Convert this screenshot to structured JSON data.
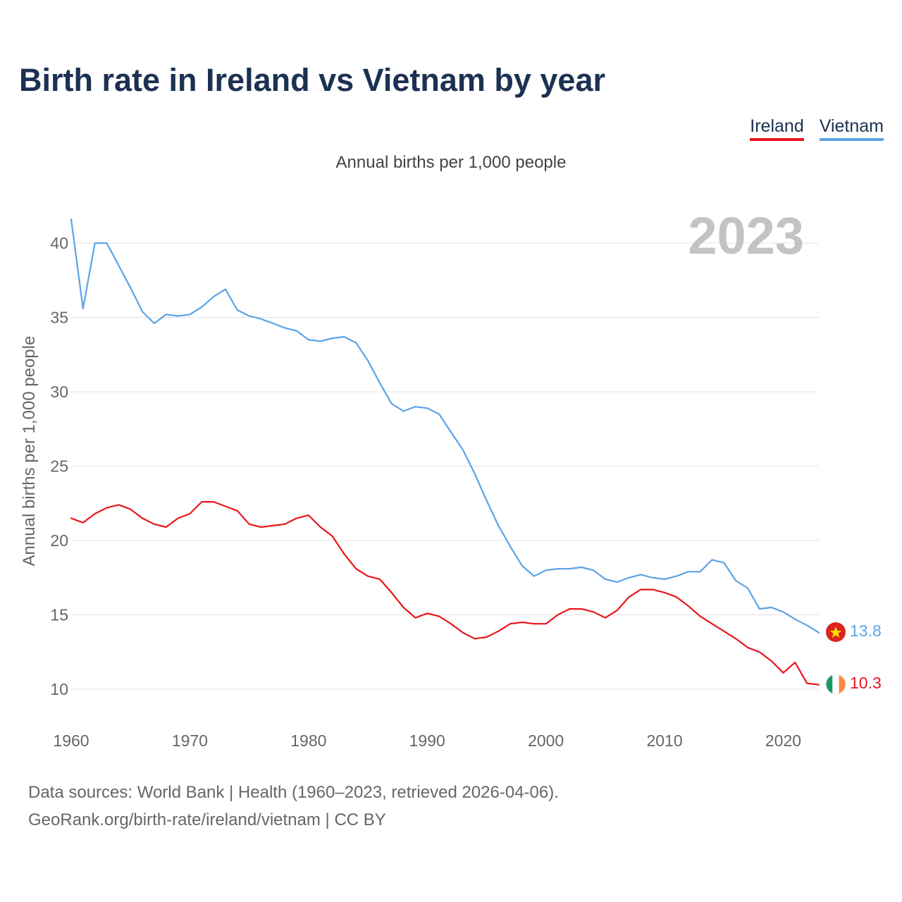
{
  "title": "Birth rate in Ireland vs Vietnam by year",
  "legend": {
    "ireland": "Ireland",
    "vietnam": "Vietnam"
  },
  "subtitle": "Annual births per 1,000 people",
  "source_line1": "Data sources: World Bank | Health (1960–2023, retrieved 2026-04-06).",
  "source_line2": "GeoRank.org/birth-rate/ireland/vietnam | CC BY",
  "chart_data": {
    "type": "line",
    "title": "Birth rate in Ireland vs Vietnam by year",
    "xlabel": "",
    "ylabel": "Annual births per 1,000 people",
    "watermark_year": "2023",
    "xlim": [
      1960,
      2023
    ],
    "ylim": [
      8.5,
      42.5
    ],
    "yticks": [
      10,
      15,
      20,
      25,
      30,
      35,
      40
    ],
    "xticks": [
      1960,
      1970,
      1980,
      1990,
      2000,
      2010,
      2020
    ],
    "grid": true,
    "x": [
      1960,
      1961,
      1962,
      1963,
      1964,
      1965,
      1966,
      1967,
      1968,
      1969,
      1970,
      1971,
      1972,
      1973,
      1974,
      1975,
      1976,
      1977,
      1978,
      1979,
      1980,
      1981,
      1982,
      1983,
      1984,
      1985,
      1986,
      1987,
      1988,
      1989,
      1990,
      1991,
      1992,
      1993,
      1994,
      1995,
      1996,
      1997,
      1998,
      1999,
      2000,
      2001,
      2002,
      2003,
      2004,
      2005,
      2006,
      2007,
      2008,
      2009,
      2010,
      2011,
      2012,
      2013,
      2014,
      2015,
      2016,
      2017,
      2018,
      2019,
      2020,
      2021,
      2022,
      2023
    ],
    "series": [
      {
        "name": "Vietnam",
        "color": "#5ba4e6",
        "end_label": "13.8",
        "values": [
          41.6,
          35.6,
          40.0,
          40.0,
          38.5,
          37.0,
          35.4,
          34.6,
          35.2,
          35.1,
          35.2,
          35.7,
          36.4,
          36.9,
          35.5,
          35.1,
          34.9,
          34.6,
          34.3,
          34.1,
          33.5,
          33.4,
          33.6,
          33.7,
          33.3,
          32.1,
          30.6,
          29.2,
          28.7,
          29.0,
          28.9,
          28.5,
          27.3,
          26.1,
          24.5,
          22.7,
          21.0,
          19.6,
          18.3,
          17.6,
          18.0,
          18.1,
          18.1,
          18.2,
          18.0,
          17.4,
          17.2,
          17.5,
          17.7,
          17.5,
          17.4,
          17.6,
          17.9,
          17.9,
          18.7,
          18.5,
          17.3,
          16.8,
          15.4,
          15.5,
          15.2,
          14.7,
          14.3,
          13.8
        ]
      },
      {
        "name": "Ireland",
        "color": "#e8161b",
        "end_label": "10.3",
        "values": [
          21.5,
          21.2,
          21.8,
          22.2,
          22.4,
          22.1,
          21.5,
          21.1,
          20.9,
          21.5,
          21.8,
          22.6,
          22.6,
          22.3,
          22.0,
          21.1,
          20.9,
          21.0,
          21.1,
          21.5,
          21.7,
          20.9,
          20.3,
          19.1,
          18.1,
          17.6,
          17.4,
          16.5,
          15.5,
          14.8,
          15.1,
          14.9,
          14.4,
          13.8,
          13.4,
          13.5,
          13.9,
          14.4,
          14.5,
          14.4,
          14.4,
          15.0,
          15.4,
          15.4,
          15.2,
          14.8,
          15.3,
          16.2,
          16.7,
          16.7,
          16.5,
          16.2,
          15.6,
          14.9,
          14.4,
          13.9,
          13.4,
          12.8,
          12.5,
          11.9,
          11.1,
          11.8,
          10.4,
          10.3
        ]
      }
    ]
  }
}
